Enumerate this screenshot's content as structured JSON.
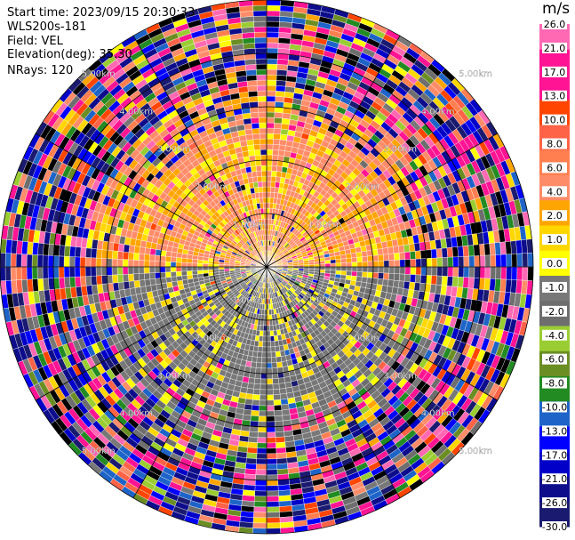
{
  "header": {
    "start_time": "Start time: 2023/09/15 20:30:33",
    "instrument": "WLS200s-181",
    "field": "Field: VEL",
    "elevation": "Elevation(deg): 35.30",
    "nrays": "NRays: 120"
  },
  "colorbar": {
    "unit": "m/s",
    "colors": [
      "#1a1a70",
      "#0d0d8c",
      "#0000c8",
      "#0000ff",
      "#1e64c8",
      "#228b22",
      "#6b8e23",
      "#9acd32",
      "#6e6e6e",
      "#787878",
      "#ffff00",
      "#ffd700",
      "#ffa500",
      "#ff8c69",
      "#ff7f50",
      "#ff6347",
      "#ff4500",
      "#ff1493",
      "#ff1493",
      "#ff69b4"
    ],
    "tick_labels": [
      "-30.0",
      "-26.0",
      "-21.0",
      "-17.0",
      "-13.0",
      "-10.0",
      "-8.0",
      "-6.0",
      "-4.0",
      "-2.0",
      "-1.0",
      "0.0",
      "1.0",
      "2.0",
      "4.0",
      "6.0",
      "8.0",
      "10.0",
      "13.0",
      "17.0",
      "21.0",
      "26.0"
    ]
  },
  "chart_data": {
    "type": "heatmap",
    "projection": "polar-ppi",
    "field": "VEL",
    "unit": "m/s",
    "nrays": 120,
    "range_rings_km": [
      1.0,
      2.0,
      3.0,
      4.0,
      5.0
    ],
    "ring_labels": [
      "1.00km",
      "2.00km",
      "3.00km",
      "4.00km",
      "5.00km"
    ],
    "max_range_km": 5.0,
    "value_bounds": [
      -30.0,
      -26.0,
      -21.0,
      -17.0,
      -13.0,
      -10.0,
      -8.0,
      -6.0,
      -4.0,
      -2.0,
      -1.0,
      0.0,
      1.0,
      2.0,
      4.0,
      6.0,
      8.0,
      10.0,
      13.0,
      17.0,
      21.0,
      26.0
    ],
    "velocity_pattern": {
      "near_range_north_half": "approx +1 to +4 m/s (yellow)",
      "near_range_south_half": "approx -1 to -4 m/s (green)",
      "far_range": "noise, full color range"
    }
  }
}
